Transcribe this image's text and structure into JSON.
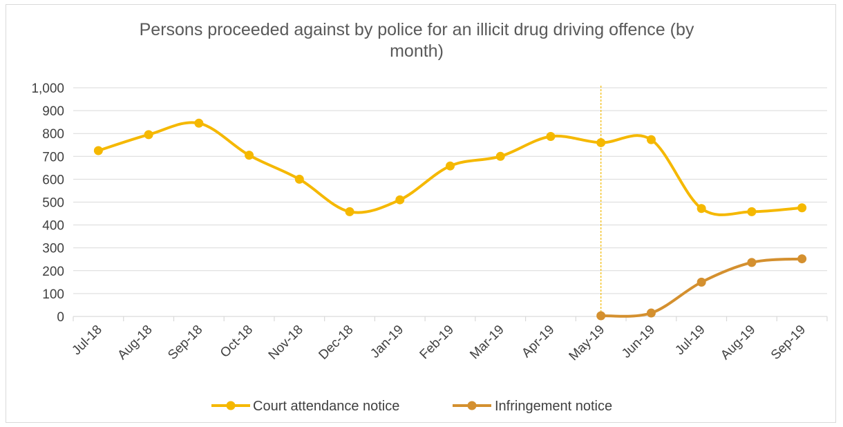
{
  "chart_data": {
    "type": "line",
    "title_lines": [
      "Persons proceeded against by police for an illicit drug driving offence (by",
      "month)"
    ],
    "categories": [
      "Jul-18",
      "Aug-18",
      "Sep-18",
      "Oct-18",
      "Nov-18",
      "Dec-18",
      "Jan-19",
      "Feb-19",
      "Mar-19",
      "Apr-19",
      "May-19",
      "Jun-19",
      "Jul-19",
      "Aug-19",
      "Sep-19"
    ],
    "y_ticks": [
      "0",
      "100",
      "200",
      "300",
      "400",
      "500",
      "600",
      "700",
      "800",
      "900",
      "1,000"
    ],
    "ylim": [
      0,
      1000
    ],
    "grid": true,
    "legend_position": "bottom",
    "reference_line": {
      "category": "May-19",
      "style": "dashed",
      "color": "#f2b800"
    },
    "series": [
      {
        "name": "Court attendance notice",
        "color": "#f5b800",
        "values": [
          725,
          795,
          845,
          705,
          600,
          458,
          510,
          658,
          700,
          787,
          760,
          773,
          472,
          458,
          475
        ]
      },
      {
        "name": "Infringement notice",
        "color": "#d4902f",
        "values": [
          null,
          null,
          null,
          null,
          null,
          null,
          null,
          null,
          null,
          null,
          3,
          15,
          150,
          236,
          252
        ]
      }
    ]
  }
}
